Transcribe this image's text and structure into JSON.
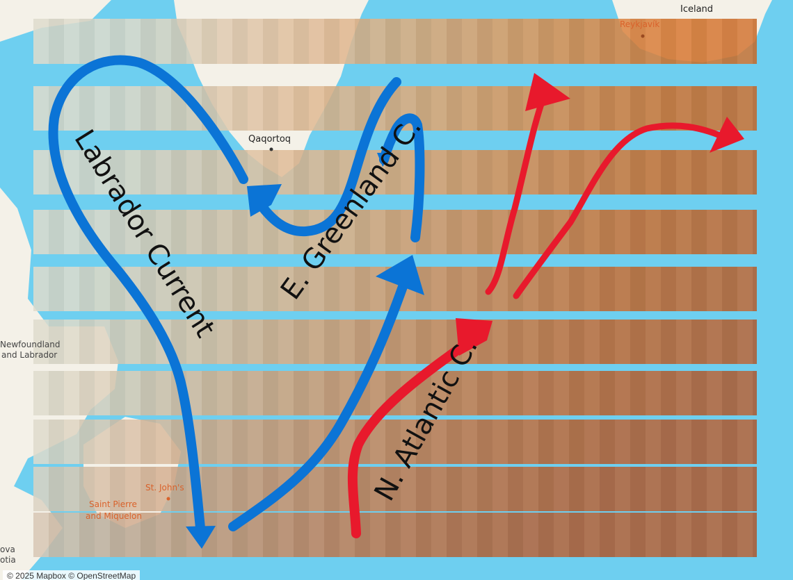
{
  "places": {
    "iceland": "Iceland",
    "reykjavik": "Reykjavík",
    "qaqortoq": "Qaqortoq",
    "newfoundland_line1": "Newfoundland",
    "newfoundland_line2": "and Labrador",
    "st_johns": "St. John's",
    "saint_pierre_line1": "Saint Pierre",
    "saint_pierre_line2": "and Miquelon",
    "nova_line1": "ova",
    "nova_line2": "otia"
  },
  "currents": {
    "labrador": "Labrador Current",
    "east_greenland": "E. Greenland C.",
    "north_atlantic": "N. Atlantic C."
  },
  "colors": {
    "water": "#6ecff0",
    "cold_current": "#0b74d6",
    "warm_current": "#e8192c",
    "land": "#f4f1e8"
  },
  "attribution": "© 2025 Mapbox © OpenStreetMap"
}
